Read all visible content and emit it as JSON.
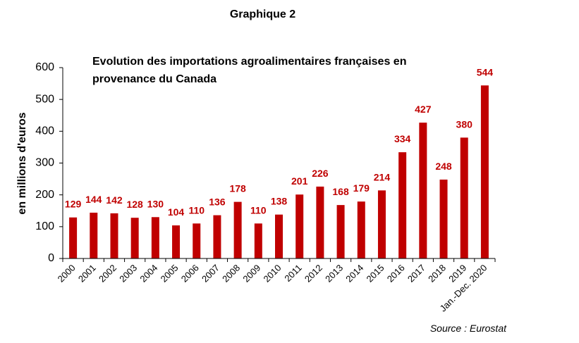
{
  "figure_heading": "Graphique 2",
  "source": "Source : Eurostat",
  "chart_data": {
    "type": "bar",
    "title_line1": "Evolution des importations agroalimentaires françaises en",
    "title_line2": "provenance du Canada",
    "title": "Evolution des importations agroalimentaires françaises en provenance du Canada",
    "xlabel": "",
    "ylabel": "en millions d'euros",
    "ylim": [
      0,
      600
    ],
    "yticks": [
      0,
      100,
      200,
      300,
      400,
      500,
      600
    ],
    "categories": [
      "2000",
      "2001",
      "2002",
      "2003",
      "2004",
      "2005",
      "2006",
      "2007",
      "2008",
      "2009",
      "2010",
      "2011",
      "2012",
      "2013",
      "2014",
      "2015",
      "2016",
      "2017",
      "2018",
      "2019",
      "Jan.-Dec. 2020"
    ],
    "values": [
      129,
      144,
      142,
      128,
      130,
      104,
      110,
      136,
      178,
      110,
      138,
      201,
      226,
      168,
      179,
      214,
      334,
      427,
      248,
      380,
      544
    ],
    "grid": false,
    "legend": "none",
    "bar_color": "#c00000"
  }
}
